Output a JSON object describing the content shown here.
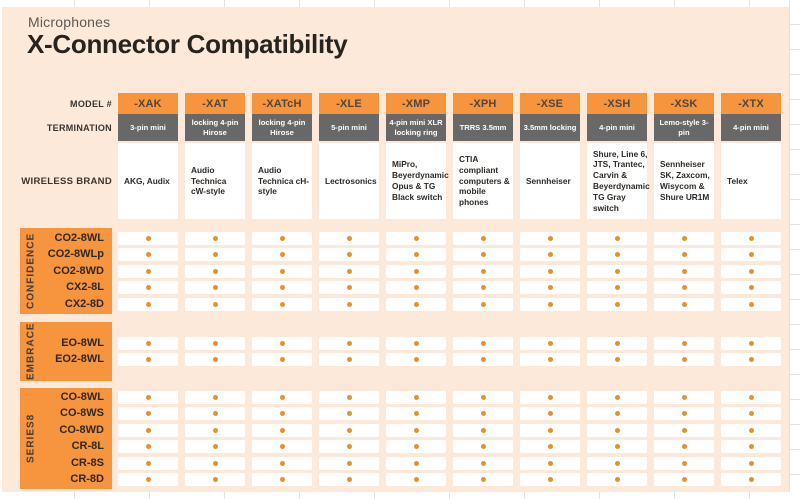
{
  "header": {
    "kicker": "Microphones",
    "title": "X-Connector Compatibility"
  },
  "colors": {
    "background": "#fce9da",
    "accent_orange": "#f7943e",
    "termination_gray": "#686868",
    "dot_orange": "#e5922e",
    "title_ink": "#27231f"
  },
  "table": {
    "model_label": "MODEL #",
    "termination_label": "TERMINATION",
    "brand_label": "WIRELESS BRAND",
    "columns": [
      {
        "model": "-XAK",
        "termination": "3-pin mini",
        "brands": "AKG, Audix"
      },
      {
        "model": "-XAT",
        "termination": "locking 4-pin Hirose",
        "brands": "Audio Technica cW-style"
      },
      {
        "model": "-XATcH",
        "termination": "locking 4-pin Hirose",
        "brands": "Audio Technica cH-style"
      },
      {
        "model": "-XLE",
        "termination": "5-pin mini",
        "brands": "Lectrosonics"
      },
      {
        "model": "-XMP",
        "termination": "4-pin mini XLR locking ring",
        "brands": "MiPro, Beyerdynamic Opus & TG Black switch"
      },
      {
        "model": "-XPH",
        "termination": "TRRS 3.5mm",
        "brands": "CTIA compliant computers & mobile phones"
      },
      {
        "model": "-XSE",
        "termination": "3.5mm locking",
        "brands": "Sennheiser"
      },
      {
        "model": "-XSH",
        "termination": "4-pin mini",
        "brands": "Shure, Line 6, JTS, Trantec, Carvin & Beyerdynamic TG Gray switch"
      },
      {
        "model": "-XSK",
        "termination": "Lemo-style 3-pin",
        "brands": "Sennheiser SK, Zaxcom, Wisycom & Shure UR1M"
      },
      {
        "model": "-XTX",
        "termination": "4-pin mini",
        "brands": "Telex"
      }
    ],
    "groups": [
      {
        "name": "CONFIDENCE",
        "rows": [
          {
            "label": "CO2-8WL",
            "compat": [
              1,
              1,
              1,
              1,
              1,
              1,
              1,
              1,
              1,
              1
            ]
          },
          {
            "label": "CO2-8WLp",
            "compat": [
              1,
              1,
              1,
              1,
              1,
              1,
              1,
              1,
              1,
              1
            ]
          },
          {
            "label": "CO2-8WD",
            "compat": [
              1,
              1,
              1,
              1,
              1,
              1,
              1,
              1,
              1,
              1
            ]
          },
          {
            "label": "CX2-8L",
            "compat": [
              1,
              1,
              1,
              1,
              1,
              1,
              1,
              1,
              1,
              1
            ]
          },
          {
            "label": "CX2-8D",
            "compat": [
              1,
              1,
              1,
              1,
              1,
              1,
              1,
              1,
              1,
              1
            ]
          }
        ]
      },
      {
        "name": "EMBRACE",
        "rows": [
          {
            "label": "EO-8WL",
            "compat": [
              1,
              1,
              1,
              1,
              1,
              1,
              1,
              1,
              1,
              1
            ]
          },
          {
            "label": "EO2-8WL",
            "compat": [
              1,
              1,
              1,
              1,
              1,
              1,
              1,
              1,
              1,
              1
            ]
          }
        ]
      },
      {
        "name": "SERIES8",
        "rows": [
          {
            "label": "CO-8WL",
            "compat": [
              1,
              1,
              1,
              1,
              1,
              1,
              1,
              1,
              1,
              1
            ]
          },
          {
            "label": "CO-8WS",
            "compat": [
              1,
              1,
              1,
              1,
              1,
              1,
              1,
              1,
              1,
              1
            ]
          },
          {
            "label": "CO-8WD",
            "compat": [
              1,
              1,
              1,
              1,
              1,
              1,
              1,
              1,
              1,
              1
            ]
          },
          {
            "label": "CR-8L",
            "compat": [
              1,
              1,
              1,
              1,
              1,
              1,
              1,
              1,
              1,
              1
            ]
          },
          {
            "label": "CR-8S",
            "compat": [
              1,
              1,
              1,
              1,
              1,
              1,
              1,
              1,
              1,
              1
            ]
          },
          {
            "label": "CR-8D",
            "compat": [
              1,
              1,
              1,
              1,
              1,
              1,
              1,
              1,
              1,
              1
            ]
          }
        ]
      }
    ]
  }
}
